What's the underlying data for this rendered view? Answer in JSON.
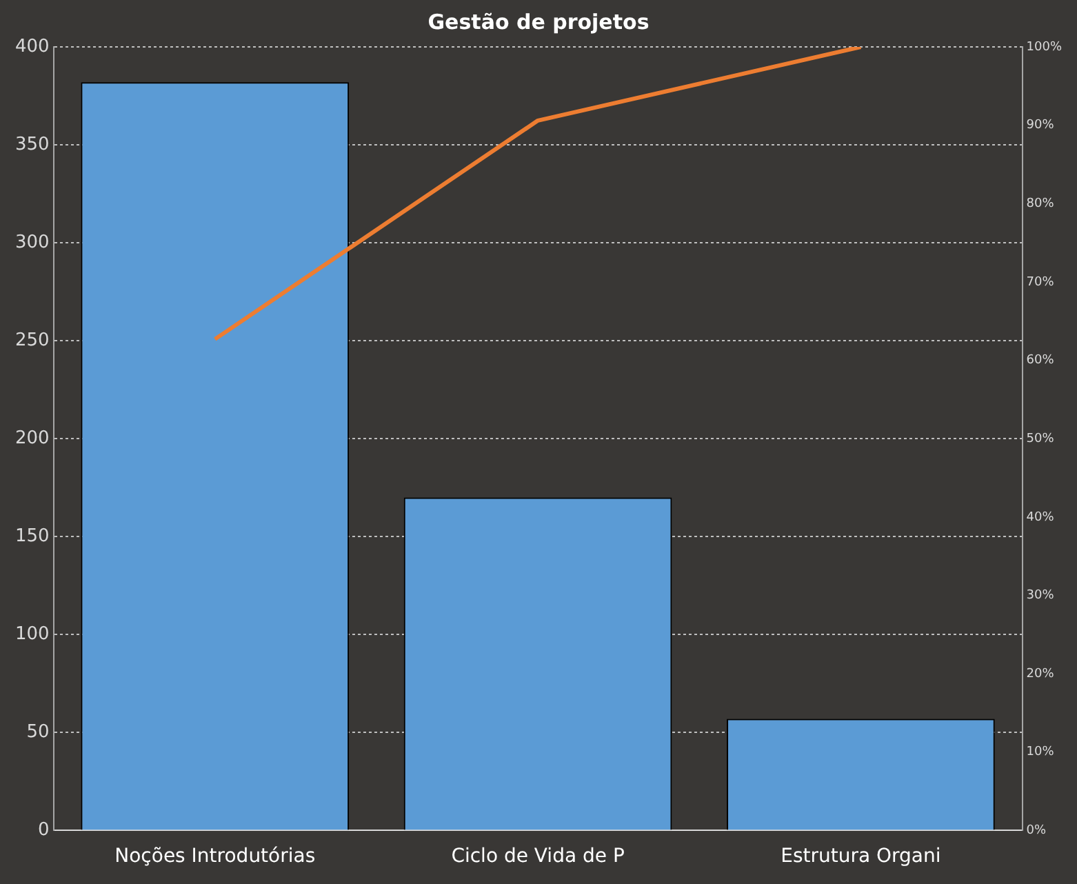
{
  "chart_data": {
    "type": "bar",
    "title": "Gestão de projetos",
    "categories": [
      "Noções Introdutórias",
      "Ciclo de Vida de P",
      "Estrutura Organi"
    ],
    "series": [
      {
        "color": "#5b9bd5",
        "values": [
          382,
          170,
          57
        ]
      },
      {
        "type": "line",
        "color": "#ed7d31",
        "axis": "y2",
        "values": [
          62.7,
          90.6,
          100
        ]
      }
    ],
    "ylim": [
      0,
      400
    ],
    "yticks": [
      0,
      50,
      100,
      150,
      200,
      250,
      300,
      350,
      400
    ],
    "y2lim": [
      0,
      100
    ],
    "y2ticks": [
      {
        "value": 0,
        "label": "0%"
      },
      {
        "value": 10,
        "label": "10%"
      },
      {
        "value": 20,
        "label": "20%"
      },
      {
        "value": 30,
        "label": "30%"
      },
      {
        "value": 40,
        "label": "40%"
      },
      {
        "value": 50,
        "label": "50%"
      },
      {
        "value": 60,
        "label": "60%"
      },
      {
        "value": 70,
        "label": "70%"
      },
      {
        "value": 80,
        "label": "80%"
      },
      {
        "value": 90,
        "label": "90%"
      },
      {
        "value": 100,
        "label": "100%"
      }
    ],
    "grid": "y",
    "legend": false,
    "marker": "none"
  }
}
